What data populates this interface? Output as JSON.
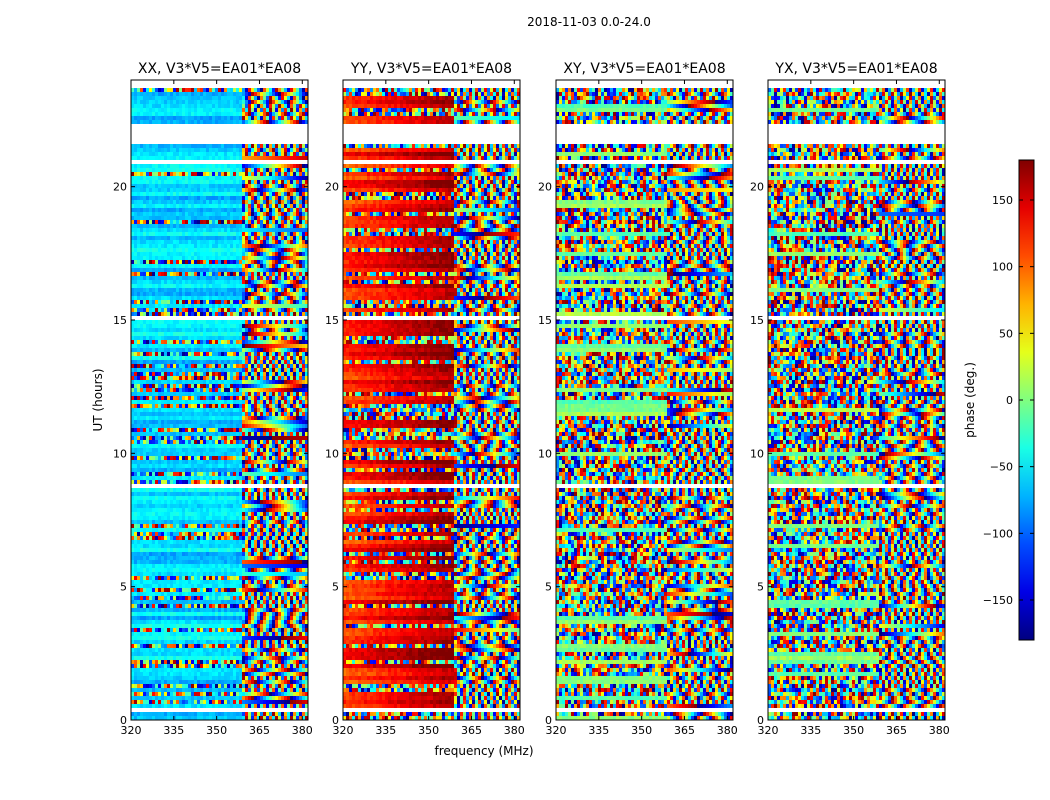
{
  "figure": {
    "suptitle": "2018-11-03 0.0-24.0"
  },
  "chart_data": {
    "type": "heatmap",
    "panels": [
      {
        "title": "XX, V3*V5=EA01*EA08",
        "pol": "XX"
      },
      {
        "title": "YY, V3*V5=EA01*EA08",
        "pol": "YY"
      },
      {
        "title": "XY, V3*V5=EA01*EA08",
        "pol": "XY"
      },
      {
        "title": "YX, V3*V5=EA01*EA08",
        "pol": "YX"
      }
    ],
    "xlabel": "frequency (MHz)",
    "ylabel": "UT (hours)",
    "xlim": [
      320,
      382
    ],
    "ylim": [
      0,
      24
    ],
    "xticks": [
      320,
      335,
      350,
      365,
      380
    ],
    "xtick_labels": [
      "320",
      "335",
      "350",
      "365",
      "380"
    ],
    "yticks": [
      0,
      5,
      10,
      15,
      20
    ],
    "ytick_labels": [
      "0",
      "5",
      "10",
      "15",
      "20"
    ],
    "colorbar": {
      "label": "phase (deg.)",
      "range": [
        -180,
        180
      ],
      "ticks": [
        -150,
        -100,
        -50,
        0,
        50,
        100,
        150
      ],
      "tick_labels": [
        "−150",
        "−100",
        "−50",
        "0",
        "50",
        "100",
        "150"
      ],
      "colormap": "jet"
    },
    "flagged_gaps_hours": [
      [
        21.65,
        22.4
      ],
      [
        23.65,
        24.0
      ],
      [
        20.9,
        21.05
      ],
      [
        16.0,
        16.1
      ],
      [
        15.05,
        15.2
      ],
      [
        11.5,
        11.6
      ],
      [
        8.75,
        8.9
      ],
      [
        3.4,
        3.5
      ],
      [
        0.35,
        0.45
      ]
    ]
  }
}
